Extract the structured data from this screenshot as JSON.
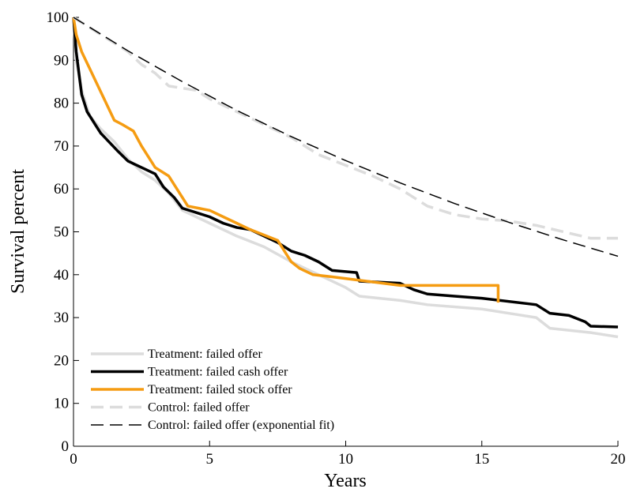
{
  "chart_data": {
    "type": "line",
    "xlabel": "Years",
    "ylabel": "Survival percent",
    "xlim": [
      0,
      20
    ],
    "xticks": [
      0,
      5,
      10,
      15,
      20
    ],
    "ylim": [
      0,
      100
    ],
    "yticks": [
      0,
      10,
      20,
      30,
      40,
      50,
      60,
      70,
      80,
      90,
      100
    ],
    "legend": "lower left",
    "series": [
      {
        "name": "Treatment: failed offer",
        "color": "#dcdcdc",
        "width": 3.5,
        "dash": false,
        "x": [
          0,
          0.1,
          0.3,
          0.6,
          1,
          1.5,
          2,
          2.5,
          3,
          3.5,
          4,
          5,
          6,
          7,
          8,
          9,
          10,
          10.5,
          12,
          13,
          15,
          16,
          17,
          17.5,
          19,
          20
        ],
        "values": [
          100,
          90,
          83,
          77,
          74,
          71,
          67,
          64,
          62,
          59,
          55,
          52,
          49,
          46.5,
          43,
          40,
          37,
          35,
          34,
          33,
          32,
          31,
          30,
          27.5,
          26.5,
          25.5
        ]
      },
      {
        "name": "Treatment: failed cash offer",
        "color": "#000000",
        "width": 3.5,
        "dash": false,
        "x": [
          0,
          0.1,
          0.2,
          0.3,
          0.5,
          0.8,
          1,
          1.3,
          1.6,
          2,
          2.5,
          3,
          3.3,
          3.7,
          4,
          4.5,
          5,
          5.5,
          6,
          6.5,
          7,
          7.5,
          8,
          8.5,
          9,
          9.5,
          10.4,
          10.5,
          12,
          12.5,
          13,
          14,
          15,
          17,
          17.5,
          18.2,
          18.8,
          19,
          20
        ],
        "values": [
          100,
          92,
          87,
          82,
          78,
          75,
          73,
          71,
          69,
          66.5,
          65,
          63.5,
          60.5,
          58,
          55.5,
          54.5,
          53.5,
          52,
          51,
          50.5,
          49,
          47.5,
          45.5,
          44.5,
          43,
          41,
          40.5,
          38.5,
          38,
          36.5,
          35.5,
          35,
          34.5,
          33,
          31,
          30.5,
          29,
          28,
          27.8
        ]
      },
      {
        "name": "Treatment: failed stock offer",
        "color": "#f59c12",
        "width": 3.5,
        "dash": false,
        "x": [
          0,
          0.1,
          0.3,
          0.6,
          0.9,
          1.2,
          1.5,
          1.8,
          2.2,
          2.5,
          2.8,
          3,
          3.5,
          3.7,
          4.2,
          5,
          5.5,
          6,
          6.5,
          7.5,
          7.8,
          8,
          8.3,
          8.8,
          9.5,
          12,
          15.6,
          15.6
        ],
        "values": [
          100,
          96,
          92,
          88,
          84,
          80,
          76,
          75,
          73.5,
          70,
          67,
          65,
          63,
          61,
          56,
          55,
          53.5,
          52,
          50.5,
          48,
          45,
          43,
          41.5,
          40,
          39.5,
          37.5,
          37.5,
          33.5
        ]
      },
      {
        "name": "Control: failed offer",
        "color": "#dcdcdc",
        "width": 3.5,
        "dash": true,
        "x": [
          0,
          1,
          2,
          2.5,
          3,
          3.5,
          4.5,
          5,
          6,
          7,
          8,
          9,
          10,
          11,
          12,
          13,
          14,
          15,
          16,
          17,
          18,
          19,
          20
        ],
        "values": [
          100,
          96,
          92,
          89,
          87,
          84,
          83,
          81,
          78,
          75,
          72,
          68,
          65.5,
          63,
          60,
          56,
          54,
          53,
          52.5,
          51.5,
          50,
          48.5,
          48.5
        ]
      },
      {
        "name": "Control: failed offer (exponential fit)",
        "color": "#000000",
        "width": 1.5,
        "dash": true,
        "x": [
          0,
          2,
          4,
          6,
          8,
          10,
          12,
          14,
          16,
          18,
          20
        ],
        "values": [
          100,
          92.2,
          85,
          78.3,
          72.2,
          66.6,
          61.4,
          56.6,
          52.2,
          48.1,
          44.3
        ]
      }
    ]
  }
}
